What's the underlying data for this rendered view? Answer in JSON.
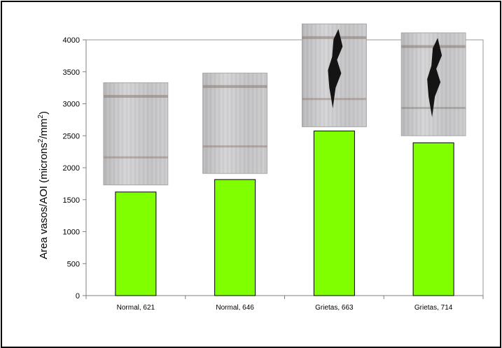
{
  "chart_data": {
    "type": "bar",
    "categories": [
      "Normal, 621",
      "Normal, 646",
      "Grietas, 663",
      "Grietas, 714"
    ],
    "values": [
      1620,
      1815,
      2575,
      2390
    ],
    "ylabel": "Area vasos/AOI (microns²/mm²)",
    "ylabel_parts": {
      "prefix": "Area vasos/AOI (microns",
      "sup1": "2",
      "mid": "/mm",
      "sup2": "2",
      "suffix": ")"
    },
    "yticks": [
      0,
      500,
      1000,
      1500,
      2000,
      2500,
      3000,
      3500,
      4000
    ],
    "ylim": [
      0,
      4000
    ],
    "grid": false,
    "legend": "none",
    "bar_color": "#7fff00",
    "photo_insets": [
      {
        "category": "Normal, 621",
        "depicts": "smooth-wood-sample",
        "defect": false,
        "top_value": 3330,
        "bottom_value": 1730
      },
      {
        "category": "Normal, 646",
        "depicts": "smooth-wood-sample",
        "defect": false,
        "top_value": 3480,
        "bottom_value": 1910
      },
      {
        "category": "Grietas, 663",
        "depicts": "cracked-wood-sample",
        "defect": true,
        "top_value": 4250,
        "bottom_value": 2640
      },
      {
        "category": "Grietas, 714",
        "depicts": "cracked-wood-sample",
        "defect": true,
        "top_value": 4110,
        "bottom_value": 2500
      }
    ]
  }
}
